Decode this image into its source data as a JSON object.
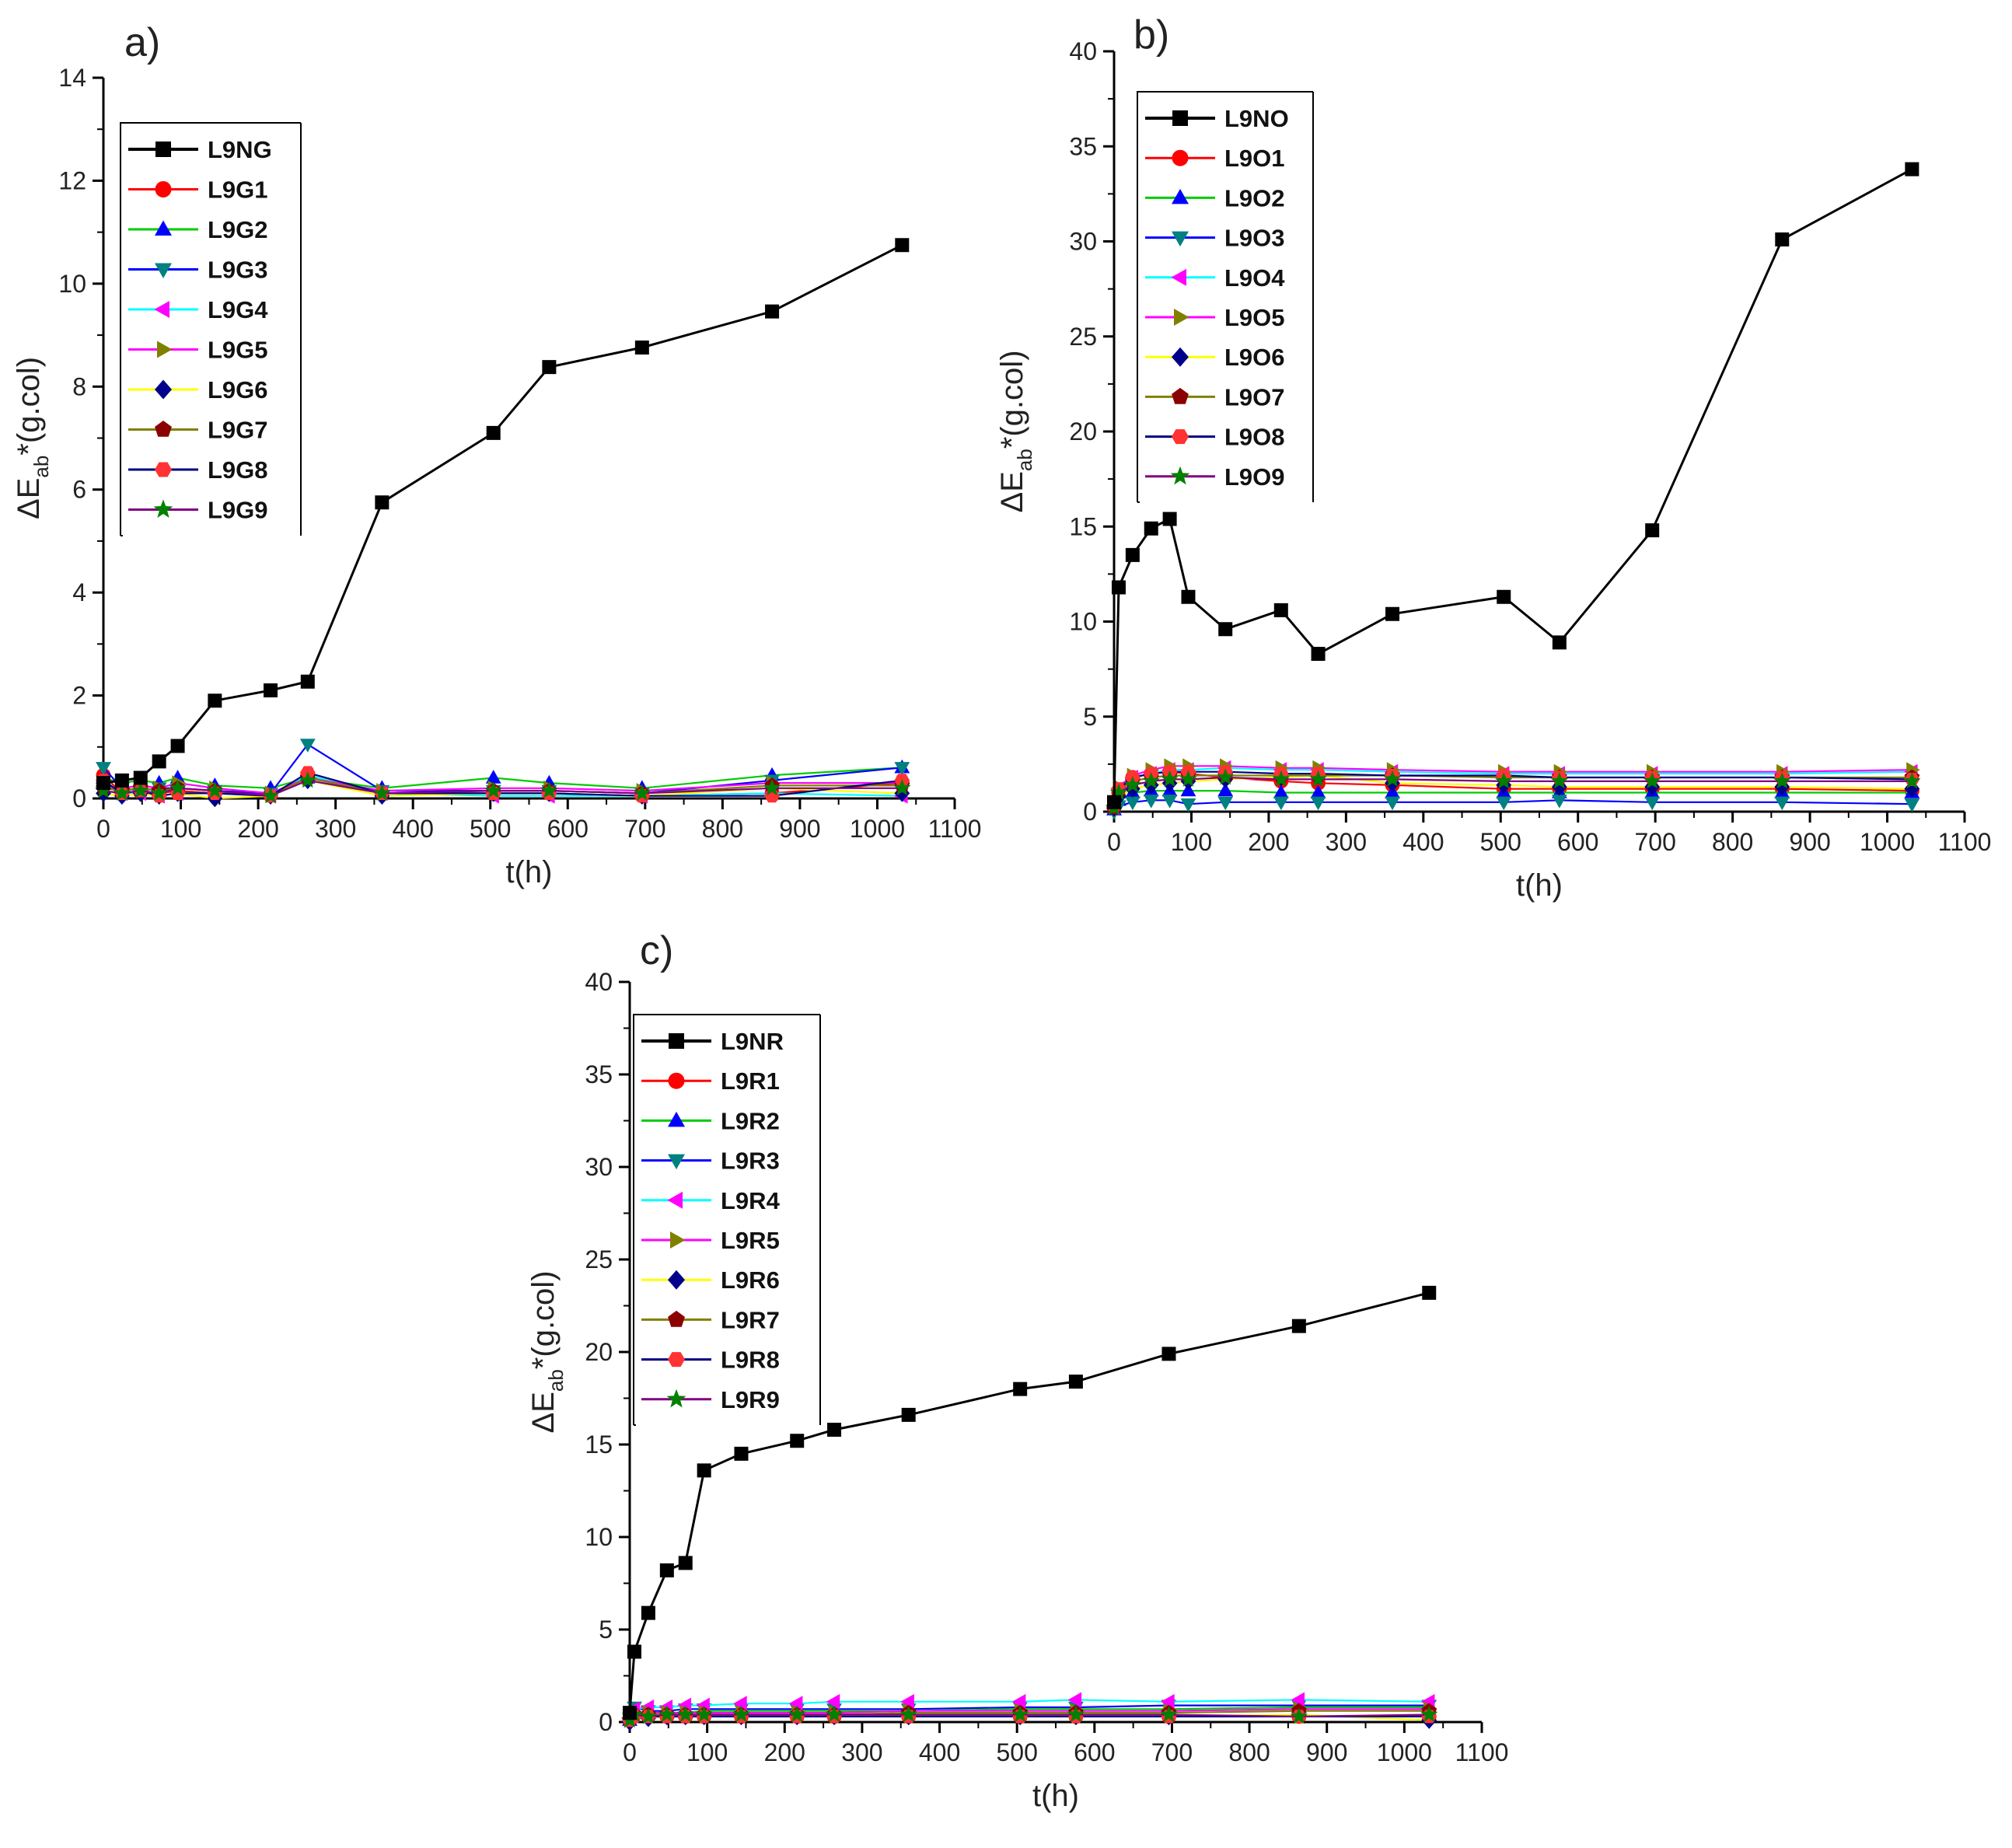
{
  "figure": {
    "description_panels": [
      "a)",
      "b)",
      "c)"
    ]
  },
  "chart_data": [
    {
      "panel_label": "a)",
      "type": "line",
      "xlabel": "t(h)",
      "ylabel_main": "ΔE",
      "ylabel_sub": "ab",
      "ylabel_rest": "*(g.col)",
      "xlim": [
        0,
        1100
      ],
      "ylim": [
        0,
        14
      ],
      "xticks": [
        0,
        100,
        200,
        300,
        400,
        500,
        600,
        700,
        800,
        900,
        1000,
        1100
      ],
      "yticks": [
        0,
        2,
        4,
        6,
        8,
        10,
        12,
        14
      ],
      "legend_position": "top-left",
      "x": [
        0,
        24,
        48,
        72,
        96,
        144,
        216,
        264,
        360,
        504,
        576,
        696,
        864,
        1032
      ],
      "series": [
        {
          "name": "L9NG",
          "color": "#000000",
          "marker": "square",
          "values": [
            0.3,
            0.35,
            0.4,
            0.72,
            1.02,
            1.9,
            2.1,
            2.27,
            5.75,
            7.1,
            8.38,
            8.76,
            9.46,
            10.75
          ]
        },
        {
          "name": "L9G1",
          "color": "#ff0000",
          "marker": "circle",
          "values": [
            0.45,
            0.1,
            0.12,
            0.1,
            0.15,
            0.1,
            0.08,
            0.45,
            0.1,
            0.1,
            0.1,
            0.05,
            0.1,
            0.3
          ]
        },
        {
          "name": "L9G2",
          "color": "#0000ff",
          "marker": "triangle-up",
          "values": [
            0.4,
            0.3,
            0.35,
            0.3,
            0.4,
            0.25,
            0.2,
            0.4,
            0.2,
            0.4,
            0.3,
            0.2,
            0.45,
            0.6
          ]
        },
        {
          "name": "L9G3",
          "color": "#008080",
          "marker": "triangle-down",
          "values": [
            0.6,
            0.2,
            0.15,
            0.2,
            0.2,
            0.15,
            0.1,
            1.05,
            0.15,
            0.15,
            0.15,
            0.1,
            0.35,
            0.6
          ]
        },
        {
          "name": "L9G4",
          "color": "#ff00ff",
          "marker": "triangle-left",
          "values": [
            0.3,
            0.1,
            0.1,
            0.05,
            0.1,
            0.1,
            0.05,
            0.45,
            0.1,
            0.05,
            0.05,
            0.05,
            0.1,
            0.05
          ]
        },
        {
          "name": "L9G5",
          "color": "#808000",
          "marker": "triangle-right",
          "values": [
            0.2,
            0.2,
            0.25,
            0.2,
            0.3,
            0.2,
            0.1,
            0.4,
            0.15,
            0.2,
            0.2,
            0.15,
            0.3,
            0.3
          ]
        },
        {
          "name": "L9G6",
          "color": "#00008b",
          "marker": "diamond",
          "values": [
            0.1,
            0.05,
            0.1,
            0.05,
            0.1,
            0.0,
            0.05,
            0.35,
            0.05,
            0.1,
            0.1,
            0.05,
            0.2,
            0.1
          ]
        },
        {
          "name": "L9G7",
          "color": "#8b0000",
          "marker": "pentagon",
          "values": [
            0.2,
            0.15,
            0.2,
            0.15,
            0.2,
            0.15,
            0.05,
            0.4,
            0.1,
            0.15,
            0.15,
            0.1,
            0.25,
            0.25
          ]
        },
        {
          "name": "L9G8",
          "color": "#ff3333",
          "marker": "hexagon",
          "values": [
            0.35,
            0.1,
            0.15,
            0.05,
            0.1,
            0.1,
            0.05,
            0.5,
            0.1,
            0.1,
            0.1,
            0.05,
            0.05,
            0.35
          ]
        },
        {
          "name": "L9G9",
          "color": "#008000",
          "marker": "star",
          "values": [
            0.15,
            0.1,
            0.15,
            0.1,
            0.2,
            0.15,
            0.05,
            0.35,
            0.1,
            0.15,
            0.15,
            0.1,
            0.2,
            0.2
          ]
        }
      ],
      "line_colors": [
        "#000000",
        "#ff0000",
        "#00cc00",
        "#0000ff",
        "#00ffff",
        "#ff00ff",
        "#ffff00",
        "#808000",
        "#000080",
        "#800080"
      ]
    },
    {
      "panel_label": "b)",
      "type": "line",
      "xlabel": "t(h)",
      "ylabel_main": "ΔE",
      "ylabel_sub": "ab",
      "ylabel_rest": "*(g.col)",
      "xlim": [
        0,
        1100
      ],
      "ylim": [
        0,
        40
      ],
      "xticks": [
        0,
        100,
        200,
        300,
        400,
        500,
        600,
        700,
        800,
        900,
        1000,
        1100
      ],
      "yticks": [
        0,
        5,
        10,
        15,
        20,
        25,
        30,
        35,
        40
      ],
      "legend_position": "top-left",
      "x": [
        0,
        6,
        24,
        48,
        72,
        96,
        144,
        216,
        264,
        360,
        504,
        576,
        696,
        864,
        1032
      ],
      "series": [
        {
          "name": "L9NO",
          "color": "#000000",
          "marker": "square",
          "values": [
            0.5,
            11.8,
            13.5,
            14.9,
            15.4,
            11.3,
            9.6,
            10.6,
            8.3,
            10.4,
            11.3,
            8.9,
            14.8,
            30.1,
            33.8
          ]
        },
        {
          "name": "L9O1",
          "color": "#ff0000",
          "marker": "circle",
          "values": [
            0.2,
            1.0,
            1.8,
            2.0,
            2.1,
            2.0,
            1.8,
            1.6,
            1.5,
            1.4,
            1.2,
            1.2,
            1.2,
            1.2,
            1.1
          ]
        },
        {
          "name": "L9O2",
          "color": "#0000ff",
          "marker": "triangle-up",
          "values": [
            0.1,
            0.6,
            1.0,
            1.1,
            1.1,
            1.1,
            1.1,
            1.0,
            1.0,
            1.0,
            1.0,
            1.0,
            1.0,
            1.0,
            1.0
          ]
        },
        {
          "name": "L9O3",
          "color": "#008080",
          "marker": "triangle-down",
          "values": [
            0.0,
            0.3,
            0.5,
            0.6,
            0.6,
            0.4,
            0.5,
            0.5,
            0.5,
            0.5,
            0.5,
            0.6,
            0.5,
            0.5,
            0.4
          ]
        },
        {
          "name": "L9O4",
          "color": "#ff00ff",
          "marker": "triangle-left",
          "values": [
            0.2,
            1.2,
            1.8,
            2.0,
            2.2,
            2.2,
            2.3,
            2.2,
            2.2,
            2.1,
            2.0,
            2.0,
            2.0,
            2.0,
            2.1
          ]
        },
        {
          "name": "L9O5",
          "color": "#808000",
          "marker": "triangle-right",
          "values": [
            0.3,
            1.3,
            1.9,
            2.2,
            2.4,
            2.4,
            2.4,
            2.3,
            2.3,
            2.2,
            2.1,
            2.1,
            2.1,
            2.1,
            2.2
          ]
        },
        {
          "name": "L9O6",
          "color": "#00008b",
          "marker": "diamond",
          "values": [
            0.2,
            0.8,
            1.2,
            1.4,
            1.5,
            1.6,
            1.7,
            1.8,
            1.9,
            1.5,
            1.4,
            1.3,
            1.3,
            1.3,
            1.2
          ]
        },
        {
          "name": "L9O7",
          "color": "#8b0000",
          "marker": "pentagon",
          "values": [
            0.2,
            1.1,
            1.6,
            1.8,
            1.9,
            1.9,
            1.9,
            1.9,
            1.9,
            1.9,
            1.8,
            1.8,
            1.8,
            1.8,
            1.8
          ]
        },
        {
          "name": "L9O8",
          "color": "#ff3333",
          "marker": "hexagon",
          "values": [
            0.3,
            1.2,
            1.8,
            2.0,
            2.1,
            2.1,
            2.1,
            2.0,
            2.0,
            1.9,
            1.9,
            1.8,
            1.8,
            1.8,
            1.7
          ]
        },
        {
          "name": "L9O9",
          "color": "#008000",
          "marker": "star",
          "values": [
            0.2,
            1.0,
            1.4,
            1.6,
            1.7,
            1.7,
            1.8,
            1.7,
            1.7,
            1.7,
            1.6,
            1.6,
            1.6,
            1.6,
            1.6
          ]
        }
      ],
      "line_colors": [
        "#000000",
        "#ff0000",
        "#00cc00",
        "#0000ff",
        "#00ffff",
        "#ff00ff",
        "#ffff00",
        "#808000",
        "#000080",
        "#800080"
      ]
    },
    {
      "panel_label": "c)",
      "type": "line",
      "xlabel": "t(h)",
      "ylabel_main": "ΔE",
      "ylabel_sub": "ab",
      "ylabel_rest": "*(g.col)",
      "xlim": [
        0,
        1100
      ],
      "ylim": [
        0,
        40
      ],
      "xticks": [
        0,
        100,
        200,
        300,
        400,
        500,
        600,
        700,
        800,
        900,
        1000,
        1100
      ],
      "yticks": [
        0,
        5,
        10,
        15,
        20,
        25,
        30,
        35,
        40
      ],
      "legend_position": "top-left",
      "x": [
        0,
        6,
        24,
        48,
        72,
        96,
        144,
        216,
        264,
        360,
        504,
        576,
        696,
        864,
        1032
      ],
      "series": [
        {
          "name": "L9NR",
          "color": "#000000",
          "marker": "square",
          "values": [
            0.5,
            3.8,
            5.9,
            8.2,
            8.6,
            13.6,
            14.5,
            15.2,
            15.8,
            16.6,
            18.0,
            18.4,
            19.9,
            21.4,
            23.2
          ]
        },
        {
          "name": "L9R1",
          "color": "#ff0000",
          "marker": "circle",
          "values": [
            0.1,
            0.4,
            0.3,
            0.3,
            0.3,
            0.3,
            0.3,
            0.3,
            0.3,
            0.3,
            0.3,
            0.3,
            0.3,
            0.3,
            0.3
          ]
        },
        {
          "name": "L9R2",
          "color": "#0000ff",
          "marker": "triangle-up",
          "values": [
            0.1,
            0.5,
            0.5,
            0.5,
            0.5,
            0.6,
            0.6,
            0.6,
            0.6,
            0.6,
            0.7,
            0.7,
            0.7,
            0.8,
            0.8
          ]
        },
        {
          "name": "L9R3",
          "color": "#008080",
          "marker": "triangle-down",
          "values": [
            0.2,
            0.8,
            0.6,
            0.6,
            0.7,
            0.7,
            0.7,
            0.7,
            0.7,
            0.7,
            0.8,
            0.8,
            0.9,
            0.9,
            0.9
          ]
        },
        {
          "name": "L9R4",
          "color": "#ff00ff",
          "marker": "triangle-left",
          "values": [
            0.2,
            0.7,
            0.8,
            0.8,
            0.9,
            0.9,
            1.0,
            1.0,
            1.1,
            1.1,
            1.1,
            1.2,
            1.1,
            1.2,
            1.1
          ]
        },
        {
          "name": "L9R5",
          "color": "#808000",
          "marker": "triangle-right",
          "values": [
            0.1,
            0.5,
            0.5,
            0.5,
            0.5,
            0.5,
            0.5,
            0.5,
            0.5,
            0.6,
            0.6,
            0.6,
            0.6,
            0.7,
            0.7
          ]
        },
        {
          "name": "L9R6",
          "color": "#00008b",
          "marker": "diamond",
          "values": [
            0.0,
            0.3,
            0.2,
            0.3,
            0.3,
            0.3,
            0.3,
            0.3,
            0.3,
            0.3,
            0.3,
            0.3,
            0.3,
            0.4,
            0.1
          ]
        },
        {
          "name": "L9R7",
          "color": "#8b0000",
          "marker": "pentagon",
          "values": [
            0.1,
            0.4,
            0.4,
            0.4,
            0.4,
            0.4,
            0.4,
            0.4,
            0.4,
            0.5,
            0.5,
            0.5,
            0.5,
            0.6,
            0.6
          ]
        },
        {
          "name": "L9R8",
          "color": "#ff3333",
          "marker": "hexagon",
          "values": [
            0.1,
            0.3,
            0.3,
            0.3,
            0.3,
            0.3,
            0.3,
            0.3,
            0.3,
            0.3,
            0.3,
            0.3,
            0.3,
            0.3,
            0.3
          ]
        },
        {
          "name": "L9R9",
          "color": "#008000",
          "marker": "star",
          "values": [
            0.1,
            0.4,
            0.3,
            0.4,
            0.4,
            0.4,
            0.4,
            0.4,
            0.4,
            0.4,
            0.4,
            0.4,
            0.4,
            0.3,
            0.4
          ]
        }
      ],
      "line_colors": [
        "#000000",
        "#ff0000",
        "#00cc00",
        "#0000ff",
        "#00ffff",
        "#ff00ff",
        "#ffff00",
        "#808000",
        "#000080",
        "#800080"
      ]
    }
  ]
}
